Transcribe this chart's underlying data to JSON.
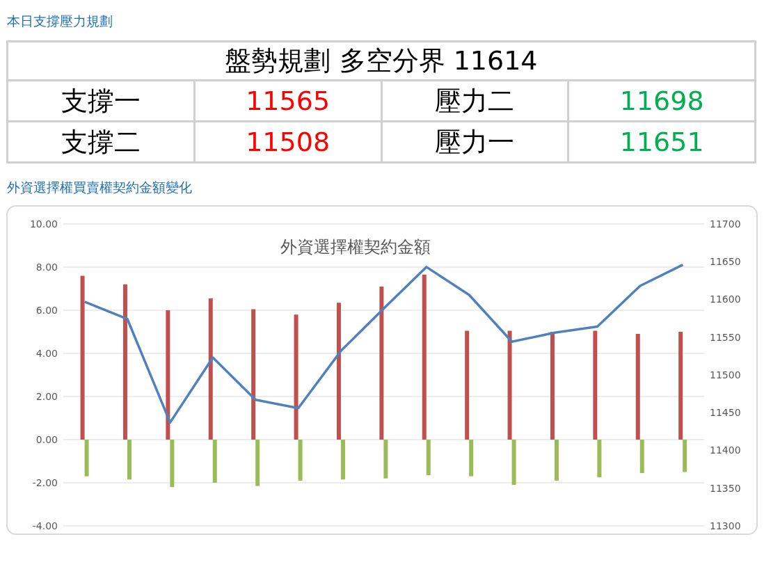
{
  "chart_data": [
    {
      "type": "other",
      "title": "本日支撐壓力規劃",
      "annotations": [
        "盤勢規劃 多空分界 11614",
        "支撐一",
        "11565",
        "壓力二",
        "11698",
        "支撐二",
        "11508",
        "壓力一",
        "11651"
      ]
    },
    {
      "type": "bar",
      "subtitle": "外資選擇權買賣權契約金額變化",
      "title": "外資選擇權契約金額",
      "categories": [
        null,
        null,
        null,
        null,
        null,
        null,
        null,
        null,
        null,
        null,
        null,
        null,
        null,
        null,
        null
      ],
      "series": [
        {
          "color": "#c0504d",
          "values": [
            7.6,
            7.2,
            6.0,
            6.55,
            6.05,
            5.8,
            6.35,
            7.1,
            7.65,
            5.05,
            5.05,
            5.0,
            5.05,
            4.9,
            5.0
          ]
        },
        {
          "color": "#9bbb59",
          "values": [
            -1.7,
            -1.85,
            -2.2,
            -2.0,
            -2.15,
            -1.9,
            -1.85,
            -1.8,
            -1.65,
            -1.7,
            -2.1,
            -1.9,
            -1.75,
            -1.55,
            -1.5
          ]
        },
        {
          "type": "line",
          "axis": "y2",
          "color": "#4f81bd",
          "values": [
            11597,
            11574,
            11437,
            11523,
            11467,
            11456,
            11532,
            11588,
            11643,
            11606,
            11544,
            11556,
            11564,
            11618,
            11646
          ]
        }
      ],
      "ylim": [
        -4,
        10
      ],
      "yticks": [
        {
          "value": -4,
          "label": "-4.00"
        },
        {
          "value": -2,
          "label": "-2.00"
        },
        {
          "value": 0,
          "label": "0.00"
        },
        {
          "value": 2,
          "label": "2.00"
        },
        {
          "value": 4,
          "label": "4.00"
        },
        {
          "value": 6,
          "label": "6.00"
        },
        {
          "value": 8,
          "label": "8.00"
        },
        {
          "value": 10,
          "label": "10.00"
        }
      ],
      "y2lim": [
        11300,
        11700
      ],
      "y2ticks": [
        11300,
        11350,
        11400,
        11450,
        11500,
        11550,
        11600,
        11650,
        11700
      ],
      "grid": "y",
      "marker": "none",
      "line_style": "solid",
      "legend": false
    }
  ]
}
